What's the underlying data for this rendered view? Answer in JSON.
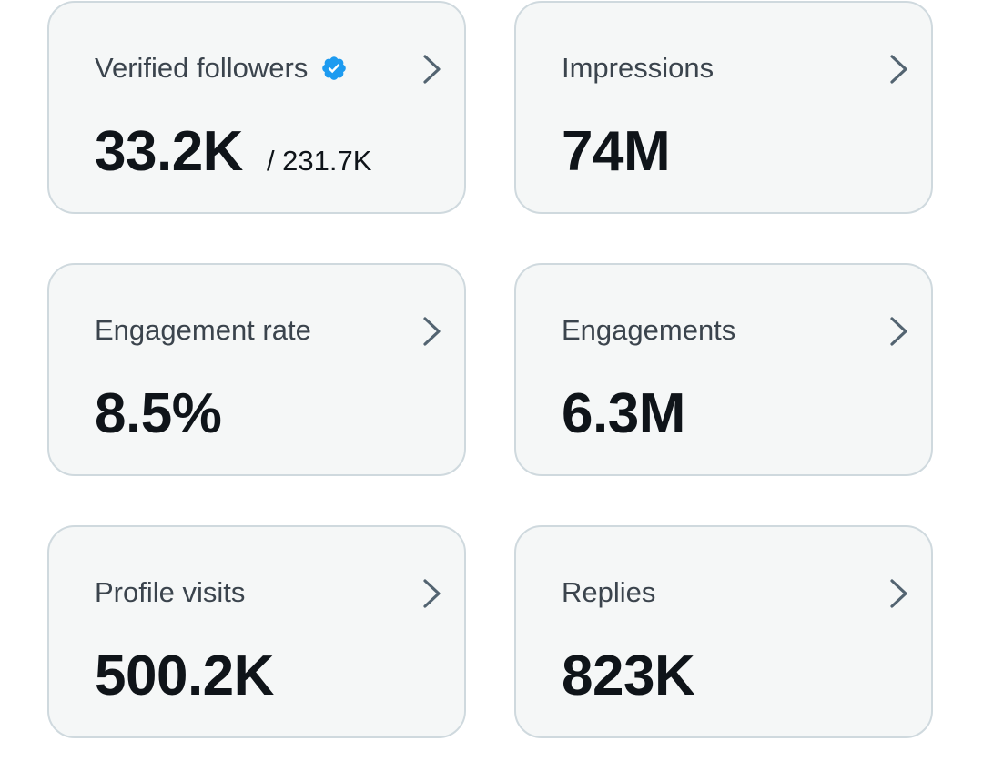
{
  "accent_color": "#1d9bf0",
  "cards": [
    {
      "label": "Verified followers",
      "value": "33.2K",
      "subvalue": "/ 231.7K",
      "icon": "verified-badge-icon"
    },
    {
      "label": "Impressions",
      "value": "74M"
    },
    {
      "label": "Engagement rate",
      "value": "8.5%"
    },
    {
      "label": "Engagements",
      "value": "6.3M"
    },
    {
      "label": "Profile visits",
      "value": "500.2K"
    },
    {
      "label": "Replies",
      "value": "823K"
    }
  ]
}
